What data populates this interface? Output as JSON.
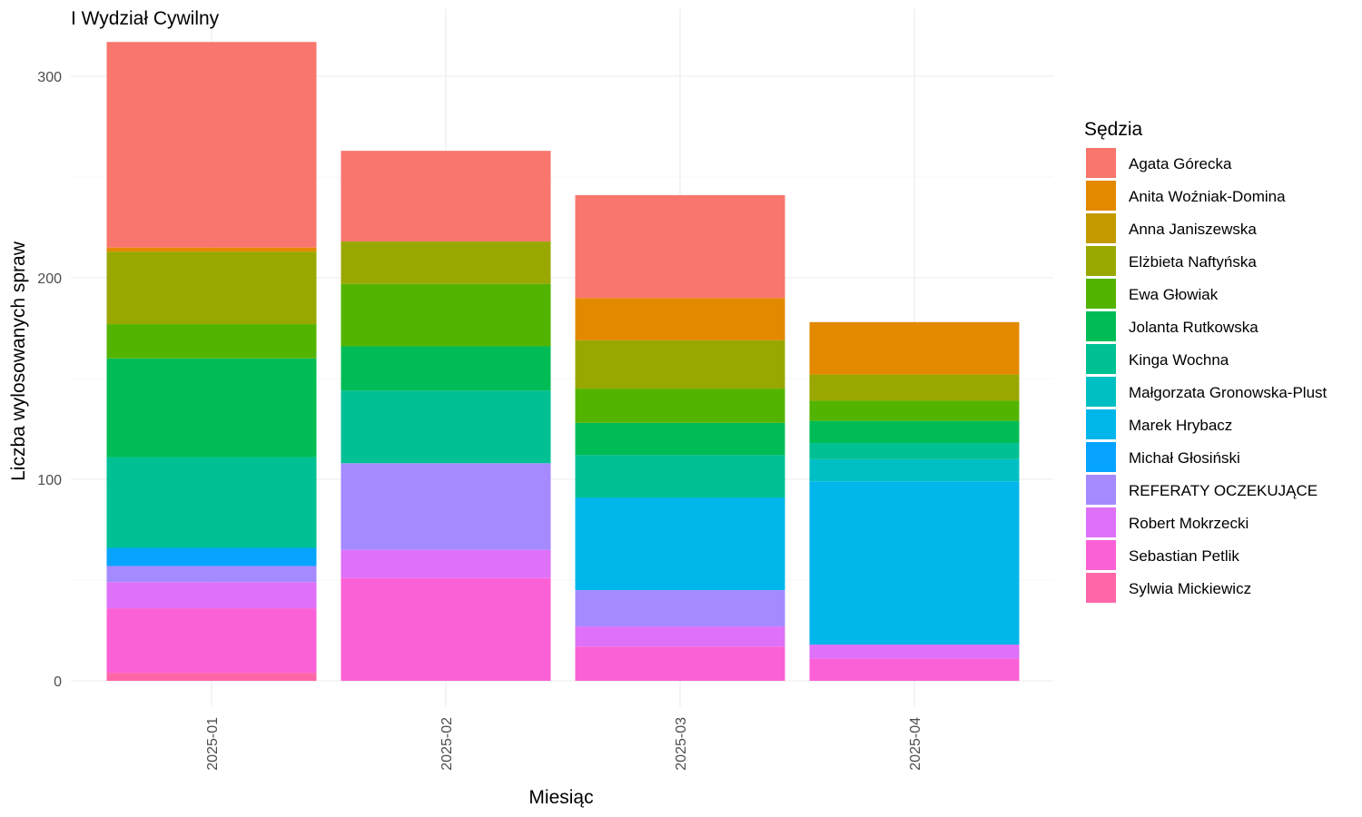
{
  "chart_data": {
    "type": "bar",
    "stacked": true,
    "title": "I Wydział Cywilny",
    "xlabel": "Miesiąc",
    "ylabel": "Liczba wylosowanych spraw",
    "ylim": [
      0,
      318
    ],
    "yticks": [
      0,
      100,
      200,
      300
    ],
    "grid": true,
    "legend_title": "Sędzia",
    "legend_position": "right",
    "categories": [
      "2025-01",
      "2025-02",
      "2025-03",
      "2025-04"
    ],
    "series": [
      {
        "name": "Agata Górecka",
        "color": "#F8766D",
        "values": [
          102,
          45,
          51,
          0
        ]
      },
      {
        "name": "Anita Woźniak-Domina",
        "color": "#E38900",
        "values": [
          2,
          0,
          21,
          26
        ]
      },
      {
        "name": "Anna Janiszewska",
        "color": "#C49A00",
        "values": [
          0,
          0,
          0,
          0
        ]
      },
      {
        "name": "Elżbieta Naftyńska",
        "color": "#99A800",
        "values": [
          36,
          21,
          24,
          13
        ]
      },
      {
        "name": "Ewa Głowiak",
        "color": "#53B400",
        "values": [
          17,
          31,
          17,
          10
        ]
      },
      {
        "name": "Jolanta Rutkowska",
        "color": "#00BC56",
        "values": [
          49,
          22,
          16,
          11
        ]
      },
      {
        "name": "Kinga Wochna",
        "color": "#00C094",
        "values": [
          45,
          36,
          21,
          8
        ]
      },
      {
        "name": "Małgorzata Gronowska-Plust",
        "color": "#00BFC4",
        "values": [
          0,
          0,
          0,
          11
        ]
      },
      {
        "name": "Marek Hrybacz",
        "color": "#00B6EB",
        "values": [
          0,
          0,
          46,
          81
        ]
      },
      {
        "name": "Michał Głosiński",
        "color": "#06A4FF",
        "values": [
          9,
          0,
          0,
          0
        ]
      },
      {
        "name": "REFERATY OCZEKUJĄCE",
        "color": "#A58AFF",
        "values": [
          8,
          43,
          18,
          0
        ]
      },
      {
        "name": "Robert Mokrzecki",
        "color": "#DF70F8",
        "values": [
          13,
          14,
          10,
          7
        ]
      },
      {
        "name": "Sebastian Petlik",
        "color": "#FB61D7",
        "values": [
          32,
          51,
          17,
          11
        ]
      },
      {
        "name": "Sylwia Mickiewicz",
        "color": "#FF66A8",
        "values": [
          4,
          0,
          0,
          0
        ]
      }
    ]
  }
}
